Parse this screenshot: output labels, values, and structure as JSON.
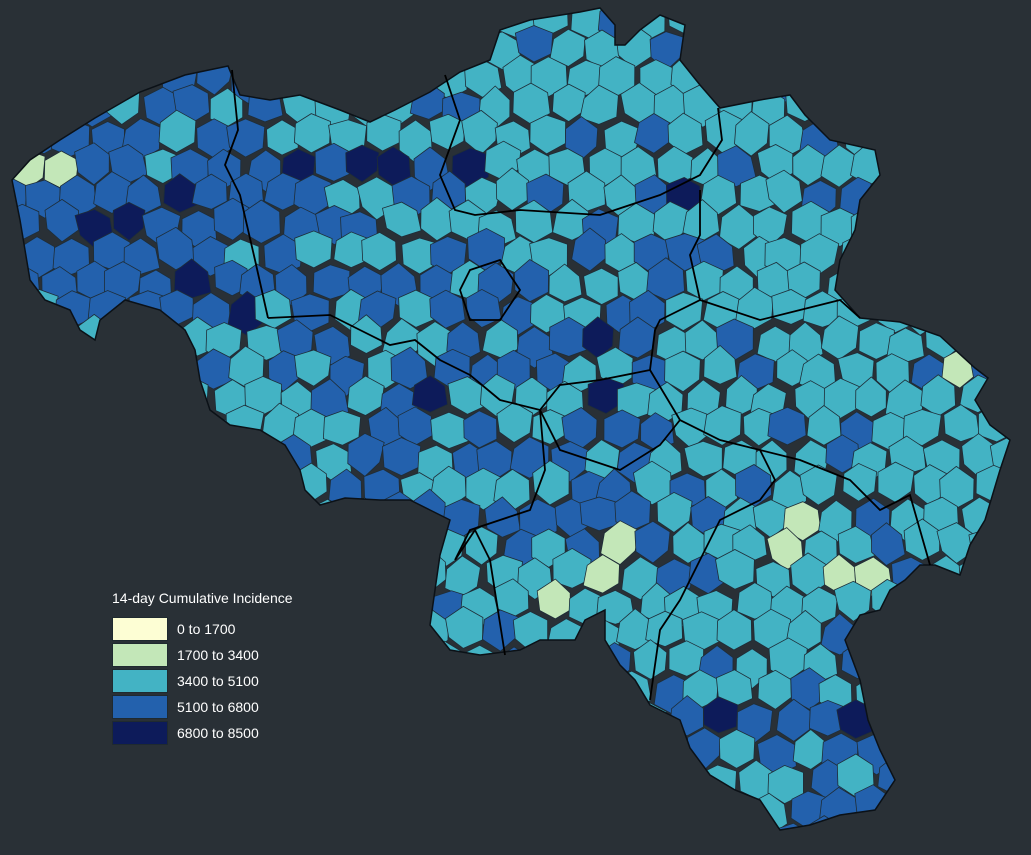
{
  "legend": {
    "title": "14-day Cumulative Incidence",
    "items": [
      {
        "label": "0 to 1700",
        "color": "#fdfed4"
      },
      {
        "label": "1700 to 3400",
        "color": "#c3e7b8"
      },
      {
        "label": "3400 to 5100",
        "color": "#43b3c4"
      },
      {
        "label": "5100 to 6800",
        "color": "#2361ad"
      },
      {
        "label": "6800 to 8500",
        "color": "#0d1b5a"
      }
    ]
  },
  "colors": {
    "background": "#293036",
    "municipality_border": "#1e2d38",
    "province_border": "#000000"
  }
}
